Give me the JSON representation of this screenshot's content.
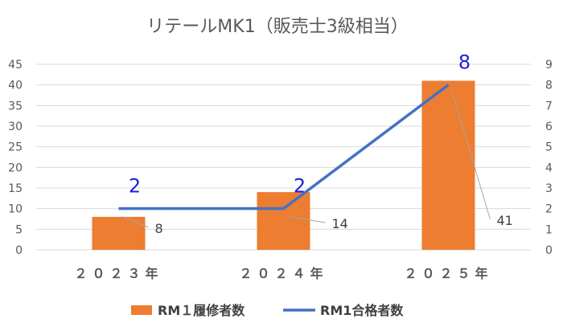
{
  "chart_data": {
    "type": "bar+line",
    "title": "リテールMK1（販売士3級相当）",
    "categories": [
      "２０２３年",
      "２０２４年",
      "２０２５年"
    ],
    "series": [
      {
        "name": "RM１履修者数",
        "kind": "bar",
        "axis": "left",
        "values": [
          8,
          14,
          41
        ],
        "color": "#ED7D31"
      },
      {
        "name": "RM1合格者数",
        "kind": "line",
        "axis": "right",
        "values": [
          2,
          2,
          8
        ],
        "color": "#4472C4"
      }
    ],
    "y_left": {
      "min": 0,
      "max": 45,
      "step": 5
    },
    "y_right": {
      "min": 0,
      "max": 9,
      "step": 1
    },
    "grid": true,
    "legend": "bottom"
  }
}
